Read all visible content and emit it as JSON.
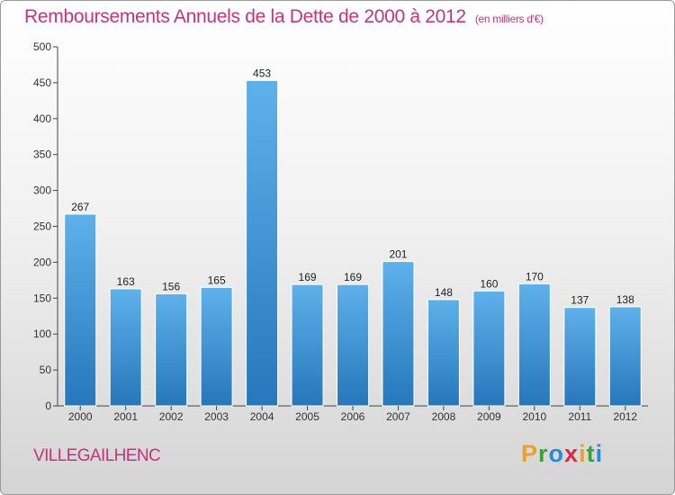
{
  "chart_title": "Remboursements Annuels de la Dette de 2000 à 2012",
  "chart_unit": "(en milliers d'€)",
  "commune": "VILLEGAILHENC",
  "logo": {
    "letters": [
      "P",
      "r",
      "o",
      "x",
      "i",
      "t",
      "i"
    ],
    "colors": [
      "#f0a020",
      "#3aa23a",
      "#2a8ad6",
      "#d62a4a",
      "#f0a020",
      "#3aa23a",
      "#2a8ad6"
    ]
  },
  "colors": {
    "title": "#c8327a",
    "bar_light": "#5eb1ea",
    "bar_dark": "#2677bb"
  },
  "chart_data": {
    "type": "bar",
    "title": "Remboursements Annuels de la Dette de 2000 à 2012",
    "subtitle": "(en milliers d'€)",
    "categories": [
      "2000",
      "2001",
      "2002",
      "2003",
      "2004",
      "2005",
      "2006",
      "2007",
      "2008",
      "2009",
      "2010",
      "2011",
      "2012"
    ],
    "values": [
      267,
      163,
      156,
      165,
      453,
      169,
      169,
      201,
      148,
      160,
      170,
      137,
      138
    ],
    "ylim": [
      0,
      500
    ],
    "yticks": [
      0,
      50,
      100,
      150,
      200,
      250,
      300,
      350,
      400,
      450,
      500
    ],
    "grid": false,
    "xlabel": "",
    "ylabel": ""
  }
}
